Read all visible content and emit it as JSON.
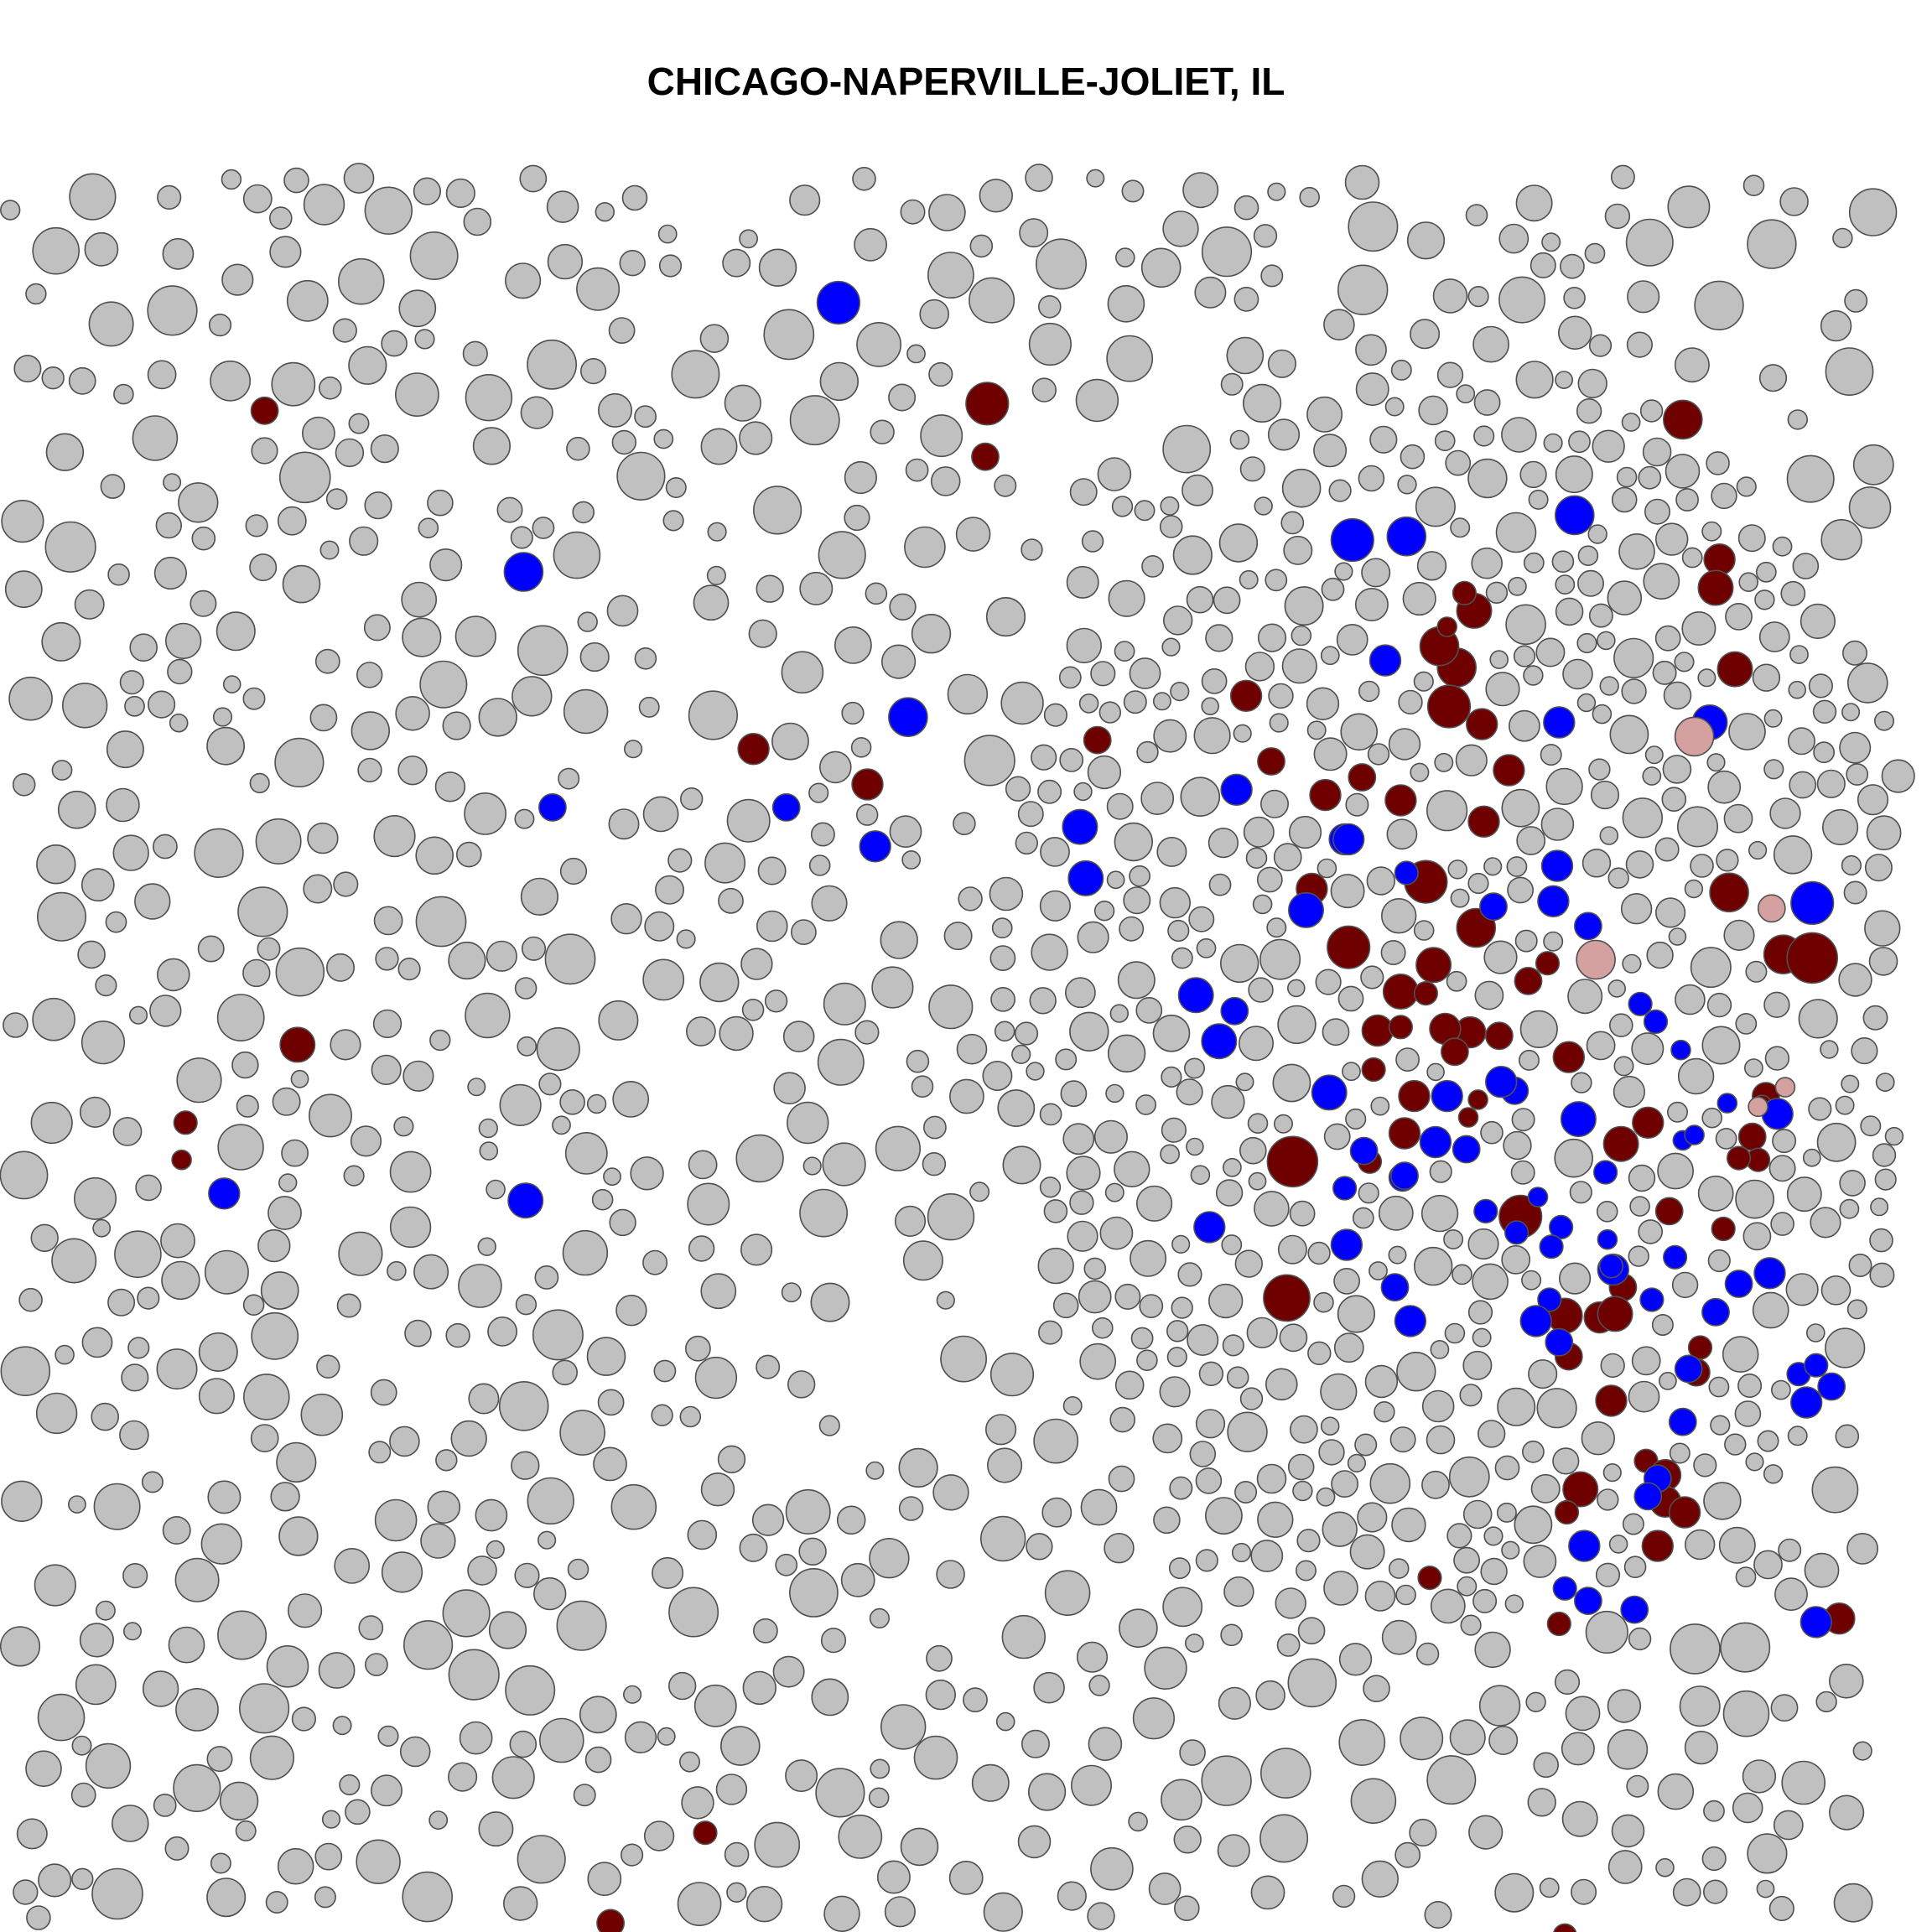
{
  "chart_data": {
    "type": "scatter",
    "title": "CHICAGO-NAPERVILLE-JOLIET, IL",
    "xlabel": "",
    "ylabel": "",
    "grid": false,
    "legend": "none",
    "colors": {
      "neutral": "#c0c0c0",
      "dark_red": "#6e0000",
      "blue": "#0000ff",
      "light_red": "#d4a0a0",
      "stroke": "#505050"
    },
    "xlim": [
      0,
      1000
    ],
    "ylim": [
      0,
      1000
    ],
    "series": [
      {
        "category": "dark_red",
        "points": [
          [
            137,
            141,
            7
          ],
          [
            511,
            137,
            11
          ],
          [
            510,
            167,
            7
          ],
          [
            390,
            332,
            8
          ],
          [
            449,
            352,
            8
          ],
          [
            154,
            499,
            9
          ],
          [
            96,
            543,
            6
          ],
          [
            94,
            564,
            5
          ],
          [
            871,
            146,
            10
          ],
          [
            890,
            225,
            8
          ],
          [
            754,
            286,
            10
          ],
          [
            645,
            302,
            8
          ],
          [
            568,
            327,
            7
          ],
          [
            658,
            339,
            7
          ],
          [
            705,
            348,
            7
          ],
          [
            686,
            358,
            8
          ],
          [
            725,
            361,
            8
          ],
          [
            768,
            373,
            8
          ],
          [
            781,
            344,
            8
          ],
          [
            767,
            318,
            8
          ],
          [
            750,
            308,
            11
          ],
          [
            763,
            254,
            9
          ],
          [
            745,
            274,
            10
          ],
          [
            758,
            244,
            6
          ],
          [
            749,
            263,
            5
          ],
          [
            679,
            411,
            8
          ],
          [
            698,
            444,
            11
          ],
          [
            738,
            407,
            11
          ],
          [
            764,
            433,
            10
          ],
          [
            742,
            454,
            9
          ],
          [
            725,
            469,
            9
          ],
          [
            713,
            491,
            8
          ],
          [
            761,
            492,
            8
          ],
          [
            738,
            470,
            6
          ],
          [
            748,
            490,
            8
          ],
          [
            725,
            489,
            6
          ],
          [
            776,
            494,
            7
          ],
          [
            711,
            513,
            6
          ],
          [
            753,
            503,
            7
          ],
          [
            732,
            528,
            8
          ],
          [
            812,
            506,
            8
          ],
          [
            791,
            463,
            7
          ],
          [
            801,
            453,
            6
          ],
          [
            765,
            530,
            5
          ],
          [
            727,
            549,
            8
          ],
          [
            839,
            555,
            9
          ],
          [
            853,
            543,
            8
          ],
          [
            895,
            413,
            10
          ],
          [
            923,
            448,
            10
          ],
          [
            898,
            287,
            9
          ],
          [
            888,
            241,
            9
          ],
          [
            938,
            450,
            13
          ],
          [
            914,
            528,
            7
          ],
          [
            907,
            551,
            7
          ],
          [
            910,
            564,
            6
          ],
          [
            900,
            563,
            6
          ],
          [
            912,
            533,
            5
          ],
          [
            669,
            565,
            13
          ],
          [
            787,
            596,
            11
          ],
          [
            666,
            642,
            12
          ],
          [
            828,
            653,
            8
          ],
          [
            864,
            593,
            7
          ],
          [
            892,
            603,
            6
          ],
          [
            709,
            565,
            6
          ],
          [
            760,
            540,
            5
          ],
          [
            840,
            636,
            7
          ],
          [
            836,
            651,
            9
          ],
          [
            810,
            652,
            9
          ],
          [
            812,
            675,
            7
          ],
          [
            834,
            700,
            8
          ],
          [
            880,
            670,
            6
          ],
          [
            878,
            684,
            7
          ],
          [
            852,
            734,
            6
          ],
          [
            862,
            742,
            8
          ],
          [
            862,
            757,
            8
          ],
          [
            872,
            763,
            8
          ],
          [
            818,
            750,
            9
          ],
          [
            811,
            763,
            6
          ],
          [
            858,
            782,
            8
          ],
          [
            952,
            823,
            8
          ],
          [
            740,
            800,
            6
          ],
          [
            807,
            826,
            6
          ],
          [
            365,
            944,
            6
          ],
          [
            316,
            995,
            7
          ],
          [
            810,
            1002,
            6
          ]
        ]
      },
      {
        "category": "blue",
        "points": [
          [
            271,
            232,
            10
          ],
          [
            434,
            80,
            11
          ],
          [
            700,
            214,
            11
          ],
          [
            728,
            212,
            10
          ],
          [
            815,
            200,
            10
          ],
          [
            717,
            282,
            8
          ],
          [
            807,
            317,
            8
          ],
          [
            885,
            317,
            9
          ],
          [
            286,
            365,
            7
          ],
          [
            470,
            314,
            10
          ],
          [
            407,
            365,
            7
          ],
          [
            453,
            387,
            8
          ],
          [
            559,
            376,
            9
          ],
          [
            640,
            355,
            8
          ],
          [
            696,
            383,
            8
          ],
          [
            676,
            423,
            9
          ],
          [
            562,
            405,
            9
          ],
          [
            619,
            471,
            9
          ],
          [
            639,
            480,
            7
          ],
          [
            698,
            383,
            8
          ],
          [
            773,
            421,
            7
          ],
          [
            804,
            418,
            8
          ],
          [
            728,
            402,
            6
          ],
          [
            806,
            398,
            8
          ],
          [
            822,
            432,
            7
          ],
          [
            849,
            476,
            6
          ],
          [
            857,
            486,
            6
          ],
          [
            870,
            502,
            5
          ],
          [
            631,
            497,
            9
          ],
          [
            784,
            525,
            7
          ],
          [
            749,
            528,
            8
          ],
          [
            743,
            554,
            8
          ],
          [
            688,
            526,
            9
          ],
          [
            777,
            520,
            8
          ],
          [
            817,
            541,
            9
          ],
          [
            759,
            558,
            7
          ],
          [
            726,
            574,
            7
          ],
          [
            938,
            419,
            11
          ],
          [
            920,
            538,
            8
          ],
          [
            871,
            553,
            5
          ],
          [
            877,
            550,
            5
          ],
          [
            894,
            532,
            5
          ],
          [
            831,
            571,
            6
          ],
          [
            808,
            602,
            6
          ],
          [
            803,
            613,
            6
          ],
          [
            835,
            626,
            8
          ],
          [
            855,
            643,
            6
          ],
          [
            867,
            619,
            6
          ],
          [
            874,
            682,
            7
          ],
          [
            888,
            650,
            7
          ],
          [
            900,
            634,
            7
          ],
          [
            916,
            628,
            8
          ],
          [
            834,
            624,
            6
          ],
          [
            832,
            609,
            5
          ],
          [
            796,
            585,
            5
          ],
          [
            785,
            605,
            6
          ],
          [
            802,
            643,
            6
          ],
          [
            807,
            667,
            7
          ],
          [
            871,
            712,
            7
          ],
          [
            858,
            744,
            7
          ],
          [
            853,
            754,
            7
          ],
          [
            820,
            782,
            8
          ],
          [
            810,
            806,
            6
          ],
          [
            822,
            813,
            7
          ],
          [
            846,
            818,
            7
          ],
          [
            940,
            825,
            8
          ],
          [
            931,
            685,
            6
          ],
          [
            935,
            701,
            8
          ],
          [
            948,
            692,
            7
          ],
          [
            940,
            680,
            6
          ],
          [
            722,
            636,
            7
          ],
          [
            697,
            612,
            8
          ],
          [
            696,
            580,
            6
          ],
          [
            706,
            559,
            7
          ],
          [
            116,
            583,
            8
          ],
          [
            626,
            602,
            8
          ],
          [
            272,
            587,
            9
          ],
          [
            727,
            573,
            7
          ],
          [
            769,
            593,
            6
          ],
          [
            730,
            655,
            8
          ],
          [
            795,
            655,
            8
          ]
        ]
      },
      {
        "category": "light_red",
        "points": [
          [
            877,
            325,
            10
          ],
          [
            826,
            451,
            10
          ],
          [
            917,
            422,
            7
          ],
          [
            924,
            523,
            5
          ],
          [
            910,
            534,
            5
          ]
        ]
      }
    ]
  }
}
